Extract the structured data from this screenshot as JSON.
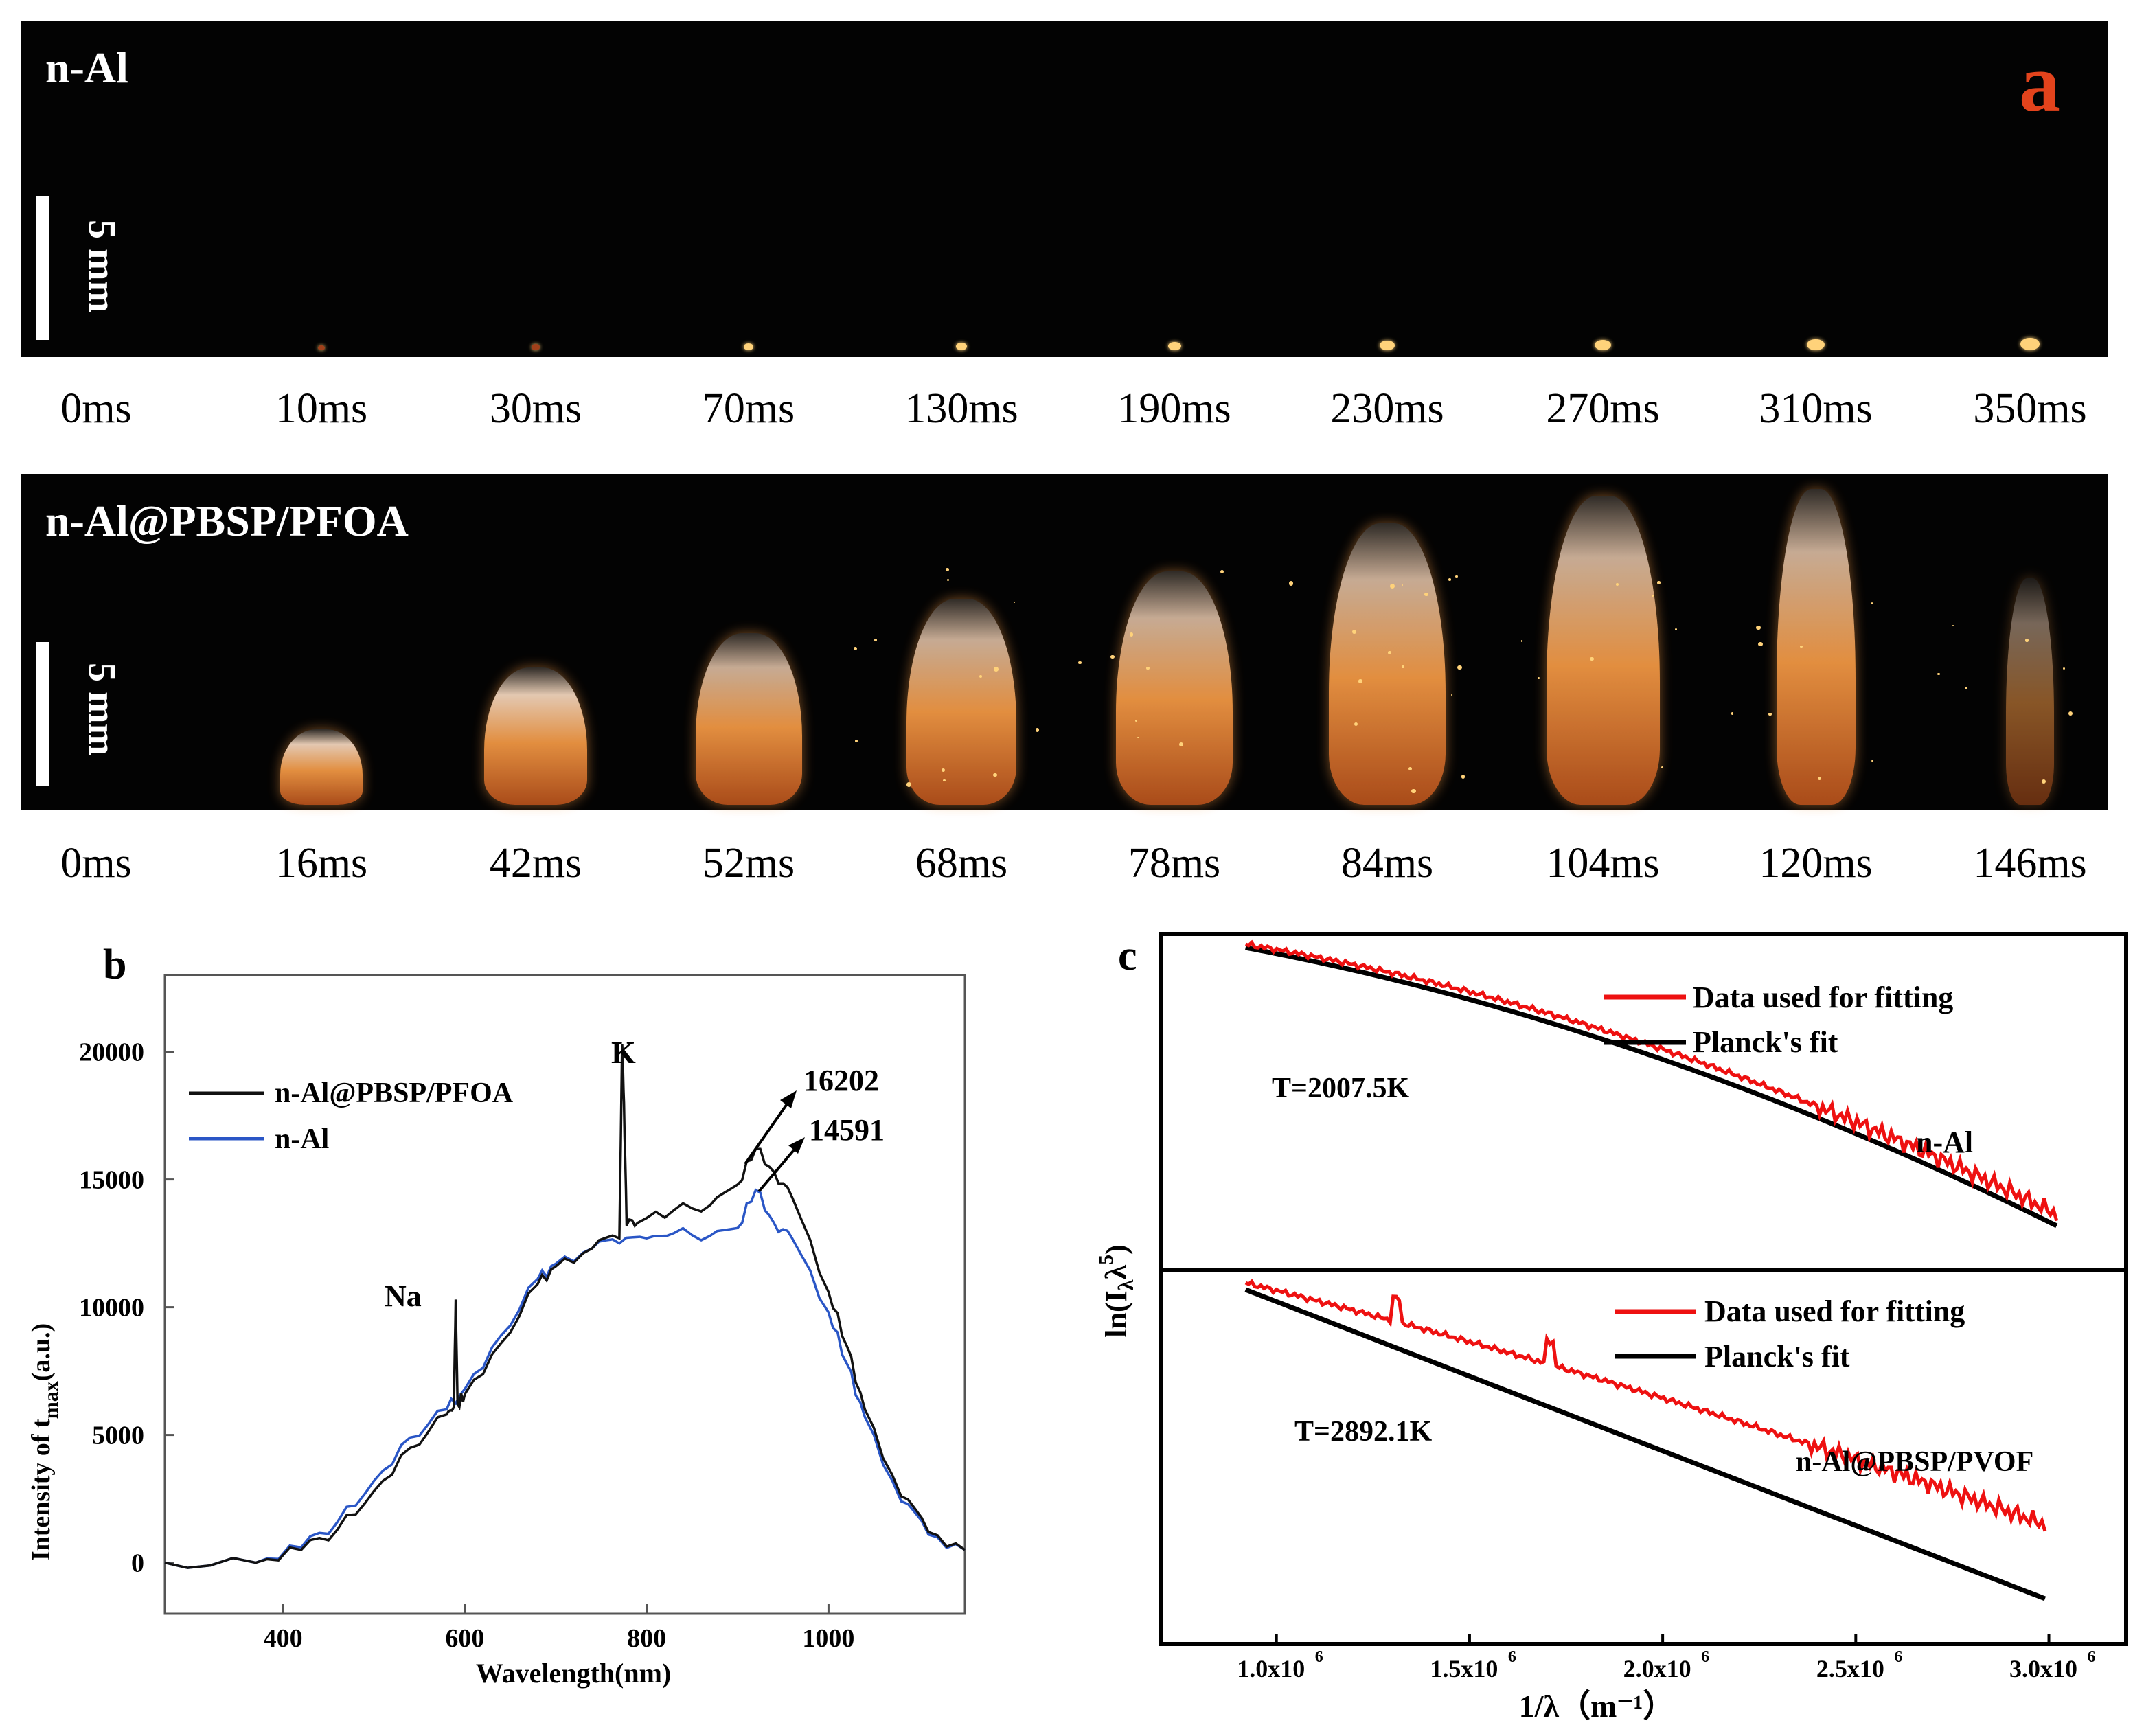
{
  "panel_a": {
    "letter": "a",
    "scale_label": "5 mm",
    "rows": [
      {
        "label": "n-Al",
        "times": [
          "0ms",
          "10ms",
          "30ms",
          "70ms",
          "130ms",
          "190ms",
          "230ms",
          "270ms",
          "310ms",
          "350ms"
        ]
      },
      {
        "label": "n-Al@PBSP/PFOA",
        "times": [
          "0ms",
          "16ms",
          "42ms",
          "52ms",
          "68ms",
          "78ms",
          "84ms",
          "104ms",
          "120ms",
          "146ms"
        ]
      }
    ]
  },
  "colors": {
    "ember": "#ffd27a",
    "plume_core": "#f59a45",
    "plume_edge": "#b8521c",
    "blue_series": "#2a56c6",
    "black_series": "#111111",
    "red_series": "#ee1111",
    "panel_a_letter": "#e3431c"
  },
  "chart_data": [
    {
      "panel": "b",
      "type": "line",
      "title": "",
      "xlabel": "Wavelength(nm)",
      "ylabel": "Intensity of t_max (a.u.)",
      "ylabel_main": "Intensity of t",
      "ylabel_sub": "max",
      "ylabel_tail": "(a.u.)",
      "xlim": [
        270,
        1150
      ],
      "ylim": [
        -2000,
        23000
      ],
      "xticks": [
        400,
        600,
        800,
        1000
      ],
      "yticks": [
        0,
        5000,
        10000,
        15000,
        20000
      ],
      "legend_position": "top-left",
      "series": [
        {
          "name": "n-Al@PBSP/PFOA",
          "color": "#111111",
          "x": [
            270,
            370,
            420,
            460,
            500,
            540,
            580,
            588,
            590,
            592,
            600,
            640,
            680,
            700,
            740,
            770,
            773,
            775,
            778,
            790,
            830,
            870,
            900,
            920,
            940,
            960,
            1000,
            1020,
            1040,
            1080,
            1110,
            1150
          ],
          "y": [
            0,
            0,
            500,
            1300,
            2800,
            4500,
            5800,
            6100,
            10300,
            6200,
            6600,
            8600,
            10900,
            11600,
            12300,
            12700,
            20300,
            18000,
            13200,
            13300,
            13800,
            14000,
            14800,
            16200,
            15300,
            14300,
            10600,
            8500,
            6000,
            2600,
            1200,
            500
          ]
        },
        {
          "name": "n-Al",
          "color": "#2a56c6",
          "x": [
            270,
            370,
            420,
            460,
            500,
            540,
            580,
            600,
            640,
            680,
            700,
            740,
            770,
            800,
            830,
            870,
            900,
            920,
            940,
            960,
            1000,
            1020,
            1040,
            1080,
            1110,
            1150
          ],
          "y": [
            0,
            0,
            600,
            1600,
            3200,
            4900,
            6000,
            6800,
            8900,
            11100,
            11700,
            12300,
            12500,
            12700,
            12900,
            12800,
            13100,
            14591,
            13300,
            12700,
            9800,
            7800,
            5700,
            2400,
            1100,
            500
          ]
        }
      ],
      "annotations": [
        "K",
        "Na",
        "16202",
        "14591"
      ]
    },
    {
      "panel": "c",
      "type": "line",
      "title": "",
      "xlabel": "1/λ（m⁻¹）",
      "ylabel": "ln(I_λ λ^5)",
      "xlim": [
        700000,
        3200000
      ],
      "xticks": [
        1000000,
        1500000,
        2000000,
        2500000,
        3000000
      ],
      "xtick_labels": [
        "1.0x10",
        "1.5x10",
        "2.0x10",
        "2.5x10",
        "3.0x10"
      ],
      "xtick_exponent": "6",
      "subplots": [
        {
          "label": "n-Al",
          "temperature_label": "T=2007.5K",
          "legend_position": "top-right",
          "series": [
            {
              "name": "Data used for fitting",
              "color": "#ee1111"
            },
            {
              "name": "Planck's fit",
              "color": "#000000"
            }
          ]
        },
        {
          "label": "n-Al@PBSP/PVOF",
          "temperature_label": "T=2892.1K",
          "legend_position": "top-right",
          "series": [
            {
              "name": "Data used for fitting",
              "color": "#ee1111"
            },
            {
              "name": "Planck's fit",
              "color": "#000000"
            }
          ]
        }
      ]
    }
  ]
}
